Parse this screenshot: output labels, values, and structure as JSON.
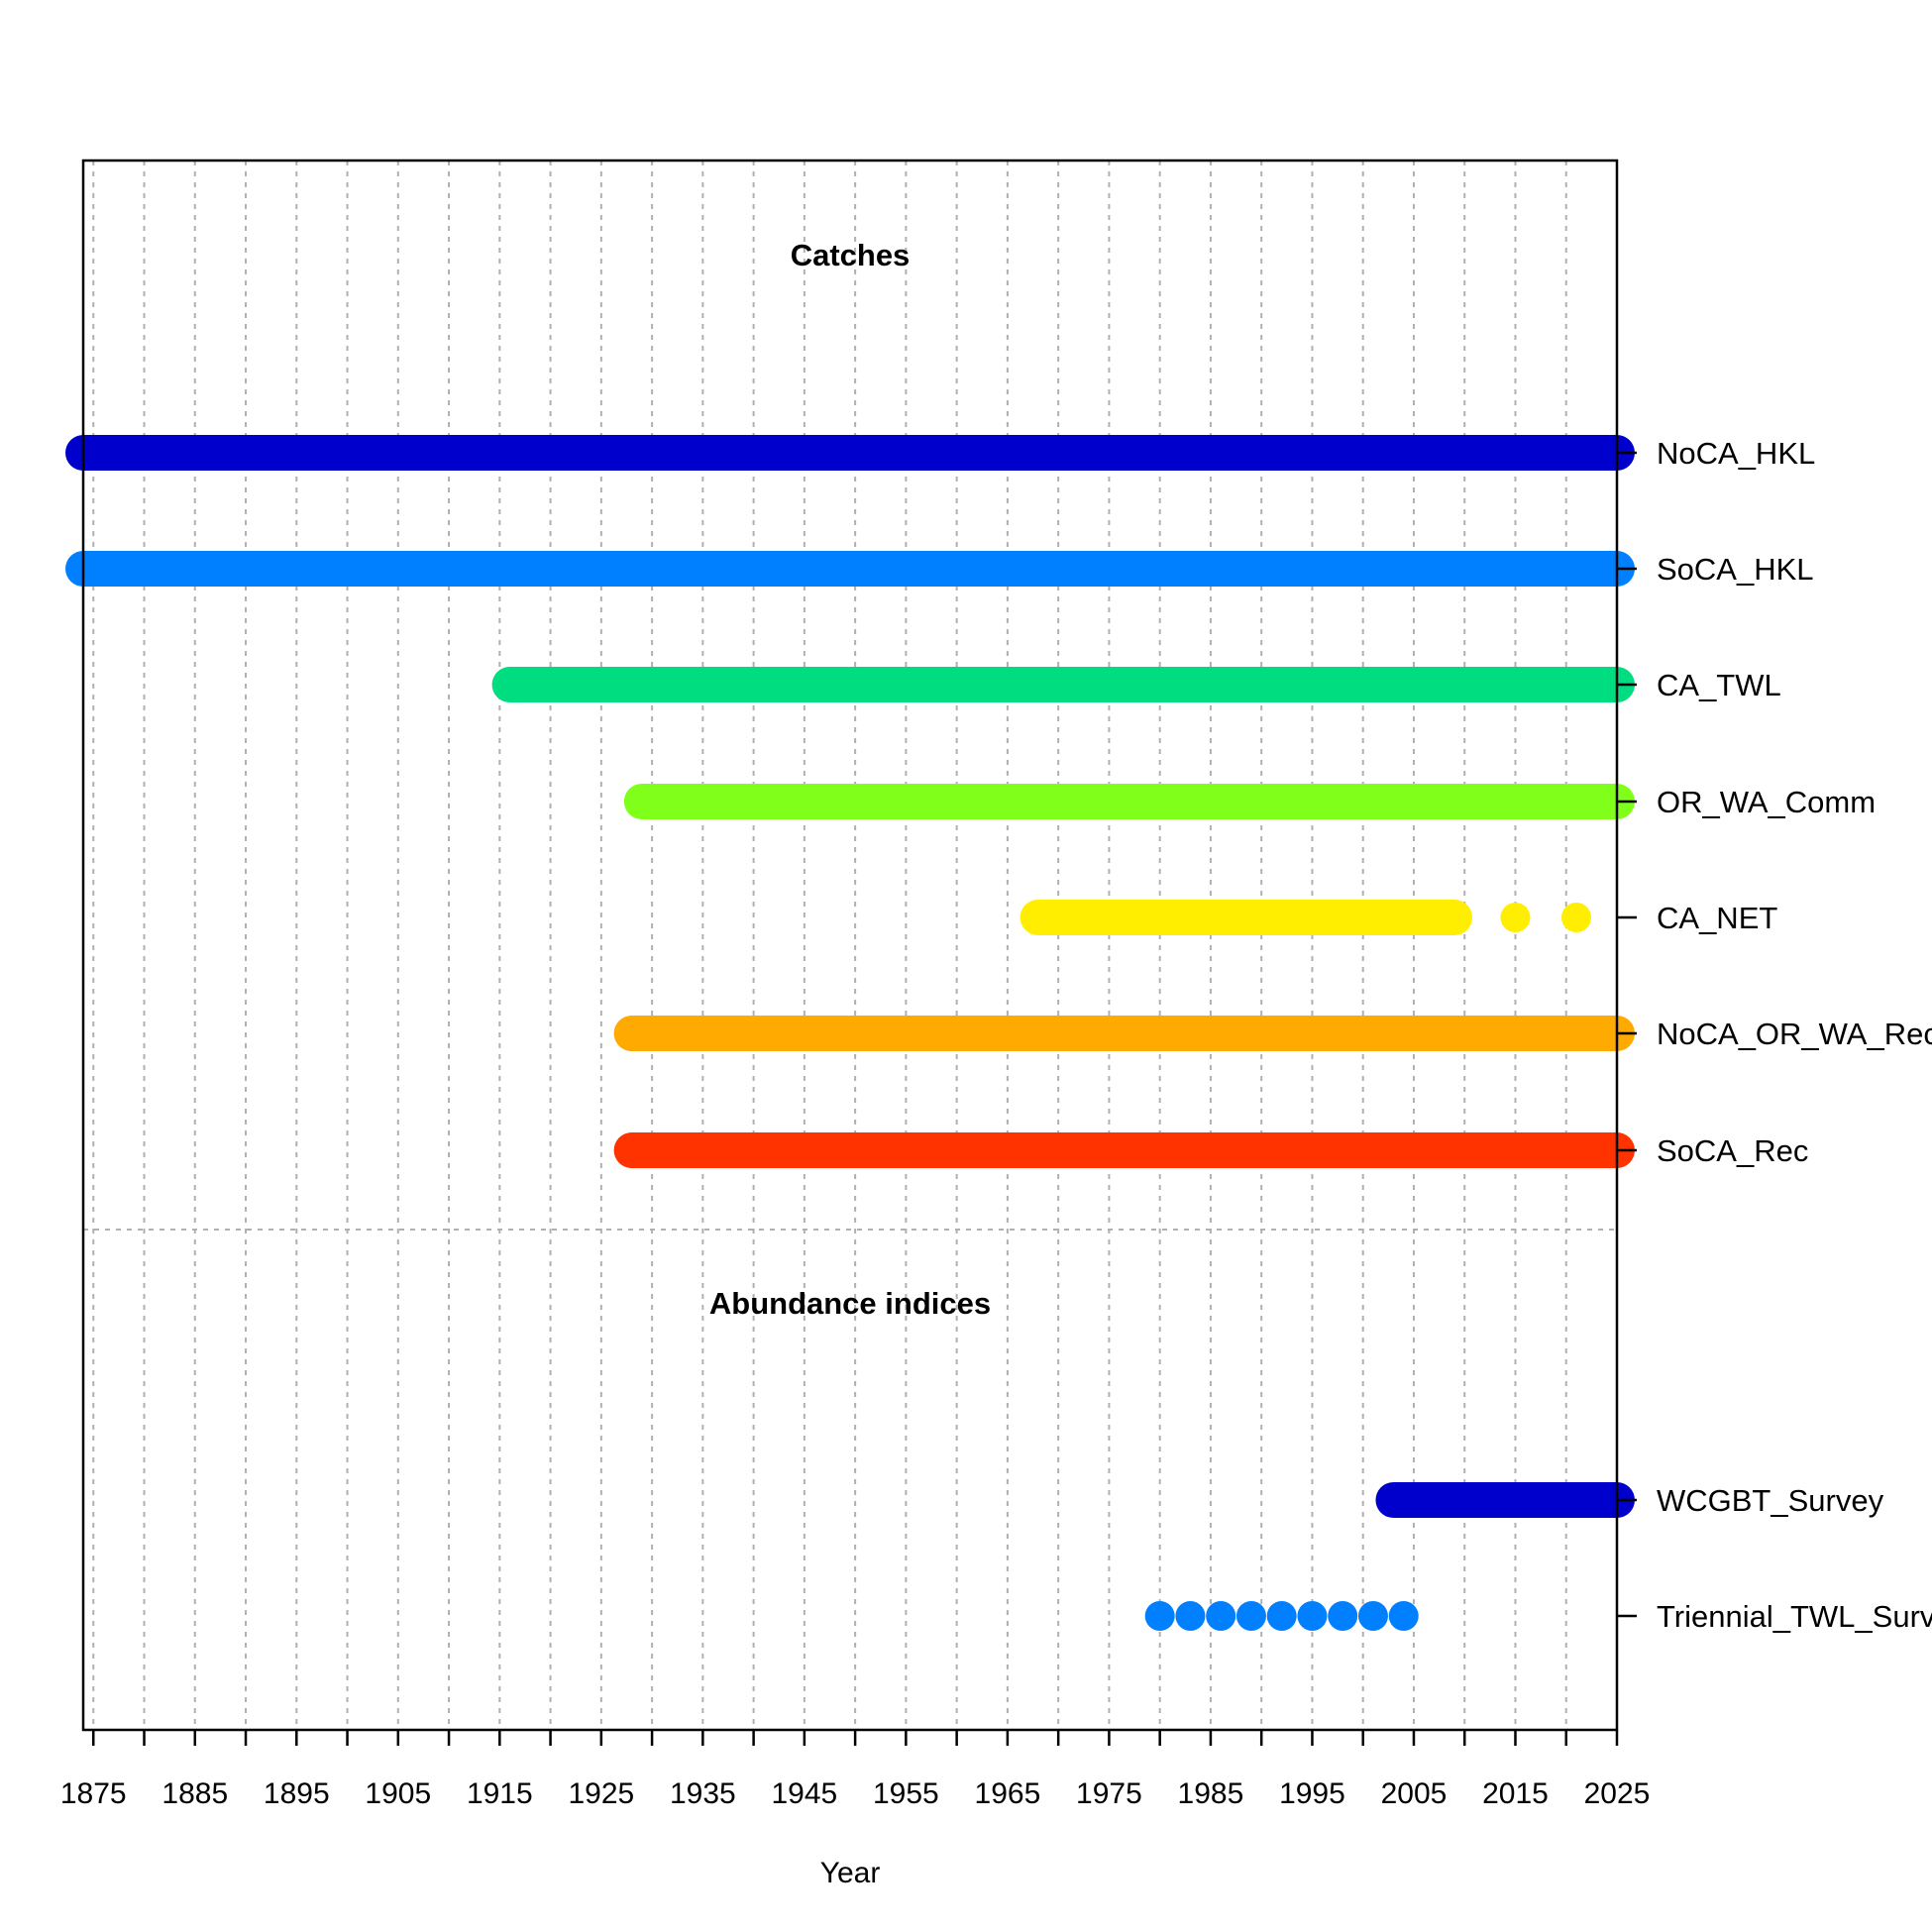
{
  "chart_data": {
    "type": "timeline",
    "xlabel": "Year",
    "xlim": [
      1874,
      2025
    ],
    "x_ticks": [
      1875,
      1885,
      1895,
      1905,
      1915,
      1925,
      1935,
      1945,
      1955,
      1965,
      1975,
      1985,
      1995,
      2005,
      2015,
      2025
    ],
    "x_minor_tick_step": 5,
    "grid": true,
    "sections": [
      {
        "title": "Catches",
        "fleets": [
          {
            "name": "NoCA_HKL",
            "color": "#0000CC",
            "segments": [
              [
                1874,
                2025
              ]
            ]
          },
          {
            "name": "SoCA_HKL",
            "color": "#0080FF",
            "segments": [
              [
                1874,
                2025
              ]
            ]
          },
          {
            "name": "CA_TWL",
            "color": "#00DD80",
            "segments": [
              [
                1916,
                2025
              ]
            ]
          },
          {
            "name": "OR_WA_Comm",
            "color": "#80FF1A",
            "segments": [
              [
                1929,
                2025
              ]
            ]
          },
          {
            "name": "CA_NET",
            "color": "#FFEE00",
            "segments": [
              [
                1968,
                2009
              ]
            ],
            "points": [
              2015,
              2021
            ]
          },
          {
            "name": "NoCA_OR_WA_Rec",
            "color": "#FFAA00",
            "segments": [
              [
                1928,
                2025
              ]
            ]
          },
          {
            "name": "SoCA_Rec",
            "color": "#FF3300",
            "segments": [
              [
                1928,
                2025
              ]
            ]
          }
        ]
      },
      {
        "title": "Abundance indices",
        "fleets": [
          {
            "name": "WCGBT_Survey",
            "color": "#0000CC",
            "segments": [
              [
                2003,
                2025
              ]
            ]
          },
          {
            "name": "Triennial_TWL_Survey",
            "color": "#0080FF",
            "segments": [],
            "points": [
              1980,
              1983,
              1986,
              1989,
              1992,
              1995,
              1998,
              2001,
              2004
            ]
          }
        ]
      }
    ]
  }
}
